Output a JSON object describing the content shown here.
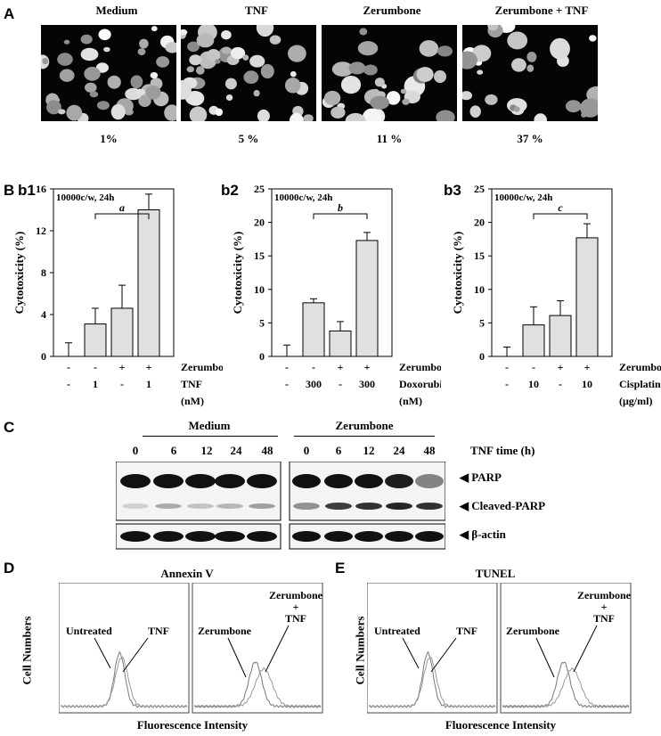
{
  "panel_labels": {
    "A": "A",
    "B": "B",
    "C": "C",
    "D": "D",
    "E": "E"
  },
  "panelA": {
    "conditions": [
      {
        "label": "Medium",
        "percent": "1%"
      },
      {
        "label": "TNF",
        "percent": "5 %"
      },
      {
        "label": "Zerumbone",
        "percent": "11 %"
      },
      {
        "label": "Zerumbone + TNF",
        "percent": "37 %"
      }
    ]
  },
  "chart_data": [
    {
      "type": "bar",
      "panel": "b1",
      "annotation": "10000c/w, 24h",
      "ylabel": "Cytotoxicity (%)",
      "ylim": [
        0,
        16
      ],
      "yticks": [
        0,
        4,
        8,
        12,
        16
      ],
      "values": [
        0,
        3.1,
        4.6,
        14.0
      ],
      "errors": [
        1.3,
        1.5,
        2.2,
        1.5
      ],
      "bracket_label": "a",
      "row1_label": "Zerumbone",
      "row1": [
        "-",
        "-",
        "+",
        "+"
      ],
      "row2_label": "TNF",
      "row2": [
        "-",
        "1",
        "-",
        "1"
      ],
      "unit": "(nM)"
    },
    {
      "type": "bar",
      "panel": "b2",
      "annotation": "10000c/w, 24h",
      "ylabel": "Cytotoxicity (%)",
      "ylim": [
        0,
        25
      ],
      "yticks": [
        0,
        5,
        10,
        15,
        20,
        25
      ],
      "values": [
        0,
        8.0,
        3.8,
        17.3
      ],
      "errors": [
        1.7,
        0.6,
        1.4,
        1.2
      ],
      "bracket_label": "b",
      "row1_label": "Zerumbone",
      "row1": [
        "-",
        "-",
        "+",
        "+"
      ],
      "row2_label": "Doxorubicin",
      "row2": [
        "-",
        "300",
        "-",
        "300"
      ],
      "unit": "(nM)"
    },
    {
      "type": "bar",
      "panel": "b3",
      "annotation": "10000c/w, 24h",
      "ylabel": "Cytotoxicity (%)",
      "ylim": [
        0,
        25
      ],
      "yticks": [
        0,
        5,
        10,
        15,
        20,
        25
      ],
      "values": [
        0,
        4.7,
        6.1,
        17.7
      ],
      "errors": [
        1.4,
        2.7,
        2.2,
        2.1
      ],
      "bracket_label": "c",
      "row1_label": "Zerumbone",
      "row1": [
        "-",
        "-",
        "+",
        "+"
      ],
      "row2_label": "Cisplatin",
      "row2": [
        "-",
        "10",
        "-",
        "10"
      ],
      "unit": "(μg/ml)"
    }
  ],
  "panelB": {
    "sub1": "b1",
    "sub2": "b2",
    "sub3": "b3"
  },
  "panelC": {
    "group1": "Medium",
    "group2": "Zerumbone",
    "time_label": "TNF time (h)",
    "times": [
      "0",
      "6",
      "12",
      "24",
      "48",
      "0",
      "6",
      "12",
      "24",
      "48"
    ],
    "bands": [
      "PARP",
      "Cleaved-PARP",
      "β-actin"
    ]
  },
  "panelD": {
    "title": "Annexin V",
    "ylabel": "Cell Numbers",
    "xlabel": "Fluorescence Intensity",
    "left_labels": [
      "Untreated",
      "TNF"
    ],
    "right_labels": [
      "Zerumbone",
      "Zerumbone",
      "+",
      "TNF"
    ]
  },
  "panelE": {
    "title": "TUNEL",
    "ylabel": "Cell Numbers",
    "xlabel": "Fluorescence Intensity",
    "left_labels": [
      "Untreated",
      "TNF"
    ],
    "right_labels": [
      "Zerumbone",
      "Zerumbone",
      "+",
      "TNF"
    ]
  }
}
